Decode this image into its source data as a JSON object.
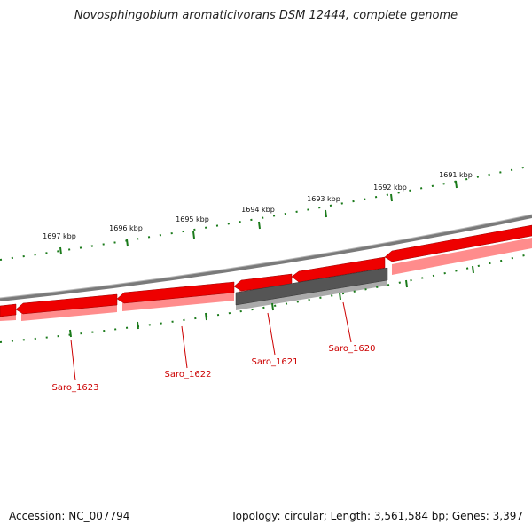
{
  "title": "Novosphingobium aromaticivorans DSM 12444, complete genome",
  "footer": {
    "accession": "Accession: NC_007794",
    "summary": "Topology: circular; Length: 3,561,584 bp; Genes: 3,397"
  },
  "ticks": [
    {
      "label": "1691 kbp",
      "x": 1691
    },
    {
      "label": "1692 kbp",
      "x": 1692
    },
    {
      "label": "1693 kbp",
      "x": 1693
    },
    {
      "label": "1694 kbp",
      "x": 1694
    },
    {
      "label": "1695 kbp",
      "x": 1695
    },
    {
      "label": "1696 kbp",
      "x": 1696
    },
    {
      "label": "1697 kbp",
      "x": 1697
    }
  ],
  "genes": [
    {
      "label": "Saro_1620",
      "color": "#cc0000"
    },
    {
      "label": "Saro_1621",
      "color": "#cc0000"
    },
    {
      "label": "Saro_1622",
      "color": "#cc0000"
    },
    {
      "label": "Saro_1623",
      "color": "#cc0000"
    }
  ],
  "colors": {
    "gene_fill": "#ee0000",
    "gene_shadow": "#ff8888",
    "pseudo_fill": "#555555",
    "pseudo_shadow": "#aaaaaa",
    "backbone": "#888888",
    "tick": "#1a7a1a",
    "label_gene": "#cc0000"
  }
}
